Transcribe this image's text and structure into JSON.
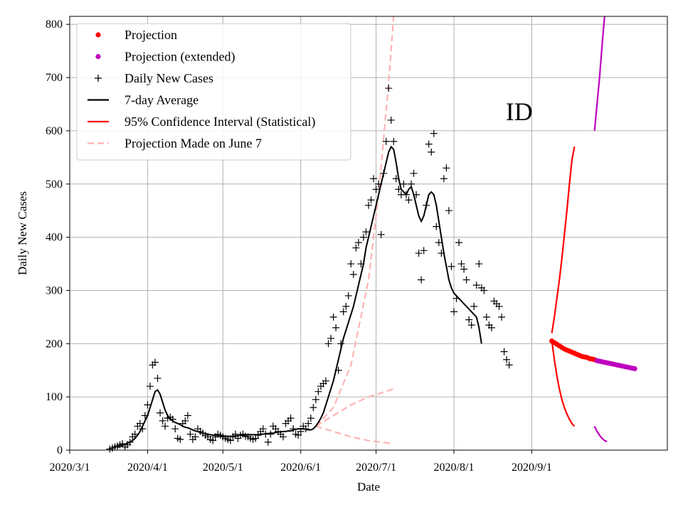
{
  "chart_data": {
    "type": "line",
    "title": "",
    "xlabel": "Date",
    "ylabel": "Daily New Cases",
    "xlim": [
      "2020-03-01",
      "2020-10-25"
    ],
    "ylim": [
      0,
      815
    ],
    "grid": true,
    "legend_position": "top-left",
    "annotation": {
      "text": "ID",
      "x": "2020-08-27",
      "y": 620
    },
    "x_ticks": [
      {
        "date": "2020-03-01",
        "label": "2020/3/1"
      },
      {
        "date": "2020-04-01",
        "label": "2020/4/1"
      },
      {
        "date": "2020-05-01",
        "label": "2020/5/1"
      },
      {
        "date": "2020-06-01",
        "label": "2020/6/1"
      },
      {
        "date": "2020-07-01",
        "label": "2020/7/1"
      },
      {
        "date": "2020-08-01",
        "label": "2020/8/1"
      },
      {
        "date": "2020-09-01",
        "label": "2020/9/1"
      }
    ],
    "y_ticks": [
      0,
      100,
      200,
      300,
      400,
      500,
      600,
      700,
      800
    ],
    "legend": [
      {
        "label": "Projection",
        "marker": "dot",
        "color": "#ff0000"
      },
      {
        "label": "Projection (extended)",
        "marker": "dot",
        "color": "#bf00bf"
      },
      {
        "label": "Daily New Cases",
        "marker": "plus",
        "color": "#000000"
      },
      {
        "label": "7-day Average",
        "marker": "line",
        "color": "#000000"
      },
      {
        "label": "95% Confidence Interval (Statistical)",
        "marker": "line",
        "color": "#ff0000"
      },
      {
        "label": "Projection Made on June 7",
        "marker": "dash",
        "color": "#ffb3b3"
      }
    ],
    "daily_start": "2020-03-17",
    "daily_new_cases": [
      2,
      4,
      6,
      8,
      10,
      12,
      6,
      10,
      15,
      25,
      30,
      45,
      50,
      40,
      65,
      85,
      120,
      160,
      165,
      135,
      70,
      55,
      45,
      60,
      62,
      58,
      40,
      22,
      20,
      50,
      55,
      65,
      30,
      20,
      25,
      40,
      35,
      32,
      28,
      25,
      20,
      18,
      25,
      30,
      28,
      25,
      22,
      20,
      18,
      25,
      30,
      22,
      28,
      30,
      26,
      25,
      22,
      20,
      22,
      28,
      35,
      40,
      30,
      15,
      30,
      45,
      40,
      35,
      30,
      25,
      50,
      55,
      60,
      40,
      30,
      28,
      35,
      45,
      40,
      50,
      60,
      80,
      95,
      110,
      120,
      125,
      130,
      200,
      210,
      250,
      230,
      150,
      200,
      260,
      270,
      290,
      350,
      330,
      380,
      390,
      350,
      400,
      410,
      460,
      470,
      510,
      490,
      500,
      405,
      520,
      580,
      680,
      620,
      580,
      510,
      490,
      480,
      500,
      480,
      470,
      500,
      520,
      480,
      370,
      320,
      375,
      460,
      575,
      560,
      595,
      420,
      390,
      370,
      510,
      530,
      450,
      345,
      260,
      285,
      390,
      350,
      340,
      320,
      245,
      235,
      270,
      310,
      350,
      305,
      300,
      250,
      235,
      230,
      280,
      275,
      270,
      250,
      185,
      170,
      160
    ],
    "seven_day_avg_start": "2020-03-20",
    "seven_day_avg": [
      5,
      7,
      9,
      11,
      13,
      15,
      18,
      22,
      28,
      35,
      45,
      55,
      65,
      80,
      95,
      110,
      113,
      105,
      90,
      75,
      65,
      58,
      55,
      52,
      50,
      48,
      45,
      43,
      42,
      40,
      38,
      36,
      35,
      33,
      32,
      31,
      30,
      29,
      28,
      28,
      27,
      27,
      26,
      26,
      26,
      26,
      26,
      27,
      27,
      28,
      28,
      28,
      29,
      29,
      29,
      29,
      29,
      30,
      30,
      31,
      31,
      32,
      32,
      33,
      34,
      34,
      35,
      35,
      36,
      36,
      38,
      39,
      40,
      40,
      40,
      39,
      38,
      38,
      40,
      45,
      52,
      60,
      70,
      85,
      100,
      115,
      130,
      150,
      170,
      190,
      210,
      225,
      240,
      255,
      270,
      290,
      310,
      330,
      350,
      380,
      400,
      420,
      440,
      460,
      480,
      500,
      520,
      540,
      560,
      570,
      565,
      540,
      510,
      490,
      485,
      480,
      490,
      495,
      480,
      460,
      440,
      430,
      440,
      460,
      480,
      485,
      480,
      460,
      430,
      400,
      370,
      345,
      320,
      305,
      295,
      290,
      285,
      280,
      275,
      270,
      265,
      260,
      255,
      250,
      230,
      200
    ],
    "projection_start": "2020-09-09",
    "projection": [
      205,
      202,
      199,
      196,
      193,
      190,
      188,
      186,
      184,
      182,
      180,
      178,
      176,
      175,
      174,
      172,
      171,
      170
    ],
    "projection_extended_start": "2020-09-27",
    "projection_extended": [
      168,
      167,
      166,
      165,
      164,
      163,
      162,
      161,
      160,
      159,
      158,
      157,
      156,
      155,
      154,
      153
    ],
    "ci_upper_start": "2020-09-09",
    "ci_upper": [
      220,
      250,
      285,
      320,
      360,
      405,
      450,
      500,
      545,
      570
    ],
    "ci_lower_start": "2020-09-09",
    "ci_lower": [
      205,
      170,
      140,
      115,
      95,
      80,
      68,
      58,
      50,
      45
    ],
    "ci_upper_extended_start": "2020-09-26",
    "ci_upper_extended": [
      600,
      650,
      700,
      760,
      815
    ],
    "ci_lower_extended_start": "2020-09-26",
    "ci_lower_extended": [
      45,
      35,
      28,
      22,
      18,
      16
    ],
    "june7_projection": {
      "start": "2020-06-07",
      "central": [
        {
          "date": "2020-06-07",
          "y": 45
        },
        {
          "date": "2020-06-14",
          "y": 65
        },
        {
          "date": "2020-06-21",
          "y": 85
        },
        {
          "date": "2020-06-28",
          "y": 100
        },
        {
          "date": "2020-07-08",
          "y": 115
        }
      ],
      "upper": [
        {
          "date": "2020-06-07",
          "y": 45
        },
        {
          "date": "2020-06-14",
          "y": 80
        },
        {
          "date": "2020-06-21",
          "y": 160
        },
        {
          "date": "2020-06-28",
          "y": 320
        },
        {
          "date": "2020-07-02",
          "y": 480
        },
        {
          "date": "2020-07-06",
          "y": 690
        },
        {
          "date": "2020-07-08",
          "y": 815
        }
      ],
      "lower": [
        {
          "date": "2020-06-07",
          "y": 45
        },
        {
          "date": "2020-06-14",
          "y": 35
        },
        {
          "date": "2020-06-21",
          "y": 25
        },
        {
          "date": "2020-06-28",
          "y": 18
        },
        {
          "date": "2020-07-08",
          "y": 12
        }
      ]
    }
  }
}
